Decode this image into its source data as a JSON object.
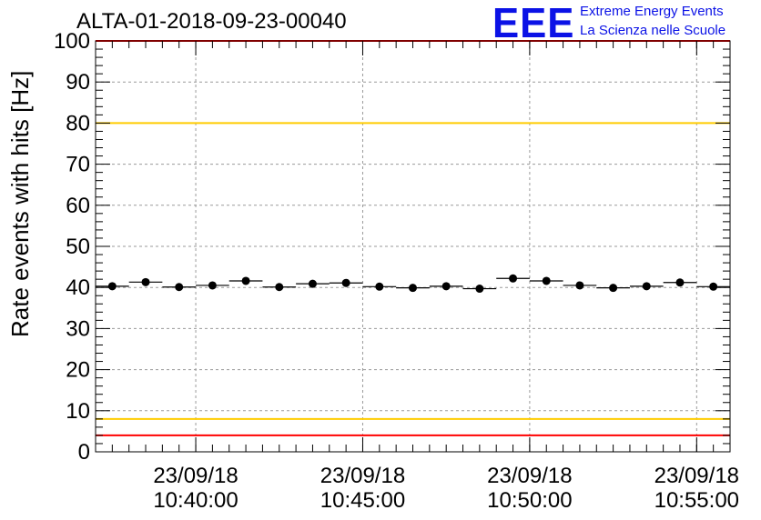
{
  "title": "ALTA-01-2018-09-23-00040",
  "logo": {
    "mark": "EEE",
    "line1": "Extreme Energy Events",
    "line2": "La Scienza nelle Scuole",
    "color": "#0b12e6"
  },
  "chart_data": {
    "type": "scatter",
    "title": "ALTA-01-2018-09-23-00040",
    "ylabel": "Rate events with hits [Hz]",
    "xlabel": "",
    "ylim": [
      0,
      100
    ],
    "y_ticks": [
      0,
      10,
      20,
      30,
      40,
      50,
      60,
      70,
      80,
      90,
      100
    ],
    "x_range": [
      "23/09/18 10:37:00",
      "23/09/18 10:56:00"
    ],
    "x_ticks": [
      {
        "x": "23/09/18 10:40:00",
        "date": "23/09/18",
        "time": "10:40:00"
      },
      {
        "x": "23/09/18 10:45:00",
        "date": "23/09/18",
        "time": "10:45:00"
      },
      {
        "x": "23/09/18 10:50:00",
        "date": "23/09/18",
        "time": "10:50:00"
      },
      {
        "x": "23/09/18 10:55:00",
        "date": "23/09/18",
        "time": "10:55:00"
      }
    ],
    "grid": true,
    "marker_color": "#000000",
    "points": [
      {
        "x": "23/09/18 10:37:30",
        "y": 40.3
      },
      {
        "x": "23/09/18 10:38:30",
        "y": 41.3
      },
      {
        "x": "23/09/18 10:39:30",
        "y": 40.1
      },
      {
        "x": "23/09/18 10:40:30",
        "y": 40.5
      },
      {
        "x": "23/09/18 10:41:30",
        "y": 41.6
      },
      {
        "x": "23/09/18 10:42:30",
        "y": 40.1
      },
      {
        "x": "23/09/18 10:43:30",
        "y": 40.9
      },
      {
        "x": "23/09/18 10:44:30",
        "y": 41.1
      },
      {
        "x": "23/09/18 10:45:30",
        "y": 40.2
      },
      {
        "x": "23/09/18 10:46:30",
        "y": 39.9
      },
      {
        "x": "23/09/18 10:47:30",
        "y": 40.3
      },
      {
        "x": "23/09/18 10:48:30",
        "y": 39.7
      },
      {
        "x": "23/09/18 10:49:30",
        "y": 42.2
      },
      {
        "x": "23/09/18 10:50:30",
        "y": 41.6
      },
      {
        "x": "23/09/18 10:51:30",
        "y": 40.5
      },
      {
        "x": "23/09/18 10:52:30",
        "y": 39.9
      },
      {
        "x": "23/09/18 10:53:30",
        "y": 40.3
      },
      {
        "x": "23/09/18 10:54:30",
        "y": 41.2
      },
      {
        "x": "23/09/18 10:55:30",
        "y": 40.2
      }
    ],
    "reference_lines": [
      {
        "y": 100,
        "color": "#ff0000"
      },
      {
        "y": 80,
        "color": "#ffcc00"
      },
      {
        "y": 8,
        "color": "#ffcc00"
      },
      {
        "y": 4,
        "color": "#ff0000"
      }
    ]
  }
}
